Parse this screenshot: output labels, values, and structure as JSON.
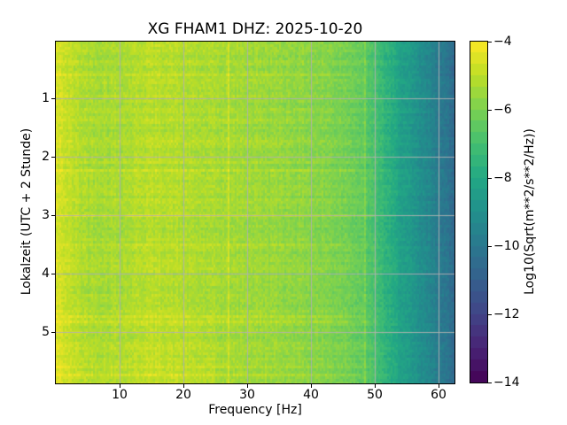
{
  "figure": {
    "background": "#ffffff",
    "text_color": "#000000"
  },
  "chart_data": {
    "type": "heatmap",
    "subtype": "spectrogram",
    "title": "XG FHAM1  DHZ: 2025-10-20",
    "xlabel": "Frequency [Hz]",
    "ylabel": "Lokalzeit (UTC + 2 Stunde)",
    "x_range_hz": [
      0,
      62.5
    ],
    "y_range_hours": [
      0.03,
      5.88
    ],
    "xticks": [
      10,
      20,
      30,
      40,
      50,
      60
    ],
    "xtick_labels": [
      "10",
      "20",
      "30",
      "40",
      "50",
      "60"
    ],
    "yticks": [
      1,
      2,
      3,
      4,
      5
    ],
    "ytick_labels": [
      "1",
      "2",
      "3",
      "4",
      "5"
    ],
    "grid": true,
    "grid_color": "#b0b0b0",
    "colormap": "viridis",
    "colormap_stops": [
      "#440154",
      "#482475",
      "#414487",
      "#35608d",
      "#2a788e",
      "#21908c",
      "#22a884",
      "#44bf70",
      "#7ad151",
      "#bdde26",
      "#fde725"
    ],
    "colorbar": {
      "label": "Log10(Sqrt(m**2/s**2/Hz))",
      "vmin": -14,
      "vmax": -4,
      "ticks": [
        -4,
        -6,
        -8,
        -10,
        -12,
        -14
      ],
      "tick_labels": [
        "−4",
        "−6",
        "−8",
        "−10",
        "−12",
        "−14"
      ],
      "levels": 30,
      "orientation": "vertical"
    },
    "spectral_profile": {
      "freq_hz": [
        0,
        1.5,
        3,
        5,
        8,
        11,
        14,
        18,
        22,
        27,
        33,
        38,
        42,
        46,
        48,
        50,
        52,
        54,
        56,
        58,
        60,
        61.5,
        62.5
      ],
      "log10_amp": [
        -4.6,
        -4.85,
        -5.1,
        -5.28,
        -5.33,
        -5.28,
        -5.08,
        -5.12,
        -5.28,
        -5.38,
        -5.52,
        -5.68,
        -5.85,
        -6.1,
        -6.45,
        -6.95,
        -7.65,
        -8.25,
        -8.8,
        -9.3,
        -9.8,
        -10.25,
        -10.6
      ]
    },
    "narrowband_lines_hz": [
      27.0,
      48.5
    ],
    "narrowband_line_boost": 0.5,
    "noise": {
      "cell_amplitude": 0.3,
      "row_amplitude": 0.16,
      "column_amplitude": 0.12,
      "streak_probability": 0.08
    },
    "time_effects": {
      "late_hours_brightening_after": 4.3,
      "early_rows_brightening_before": 0.15
    }
  }
}
